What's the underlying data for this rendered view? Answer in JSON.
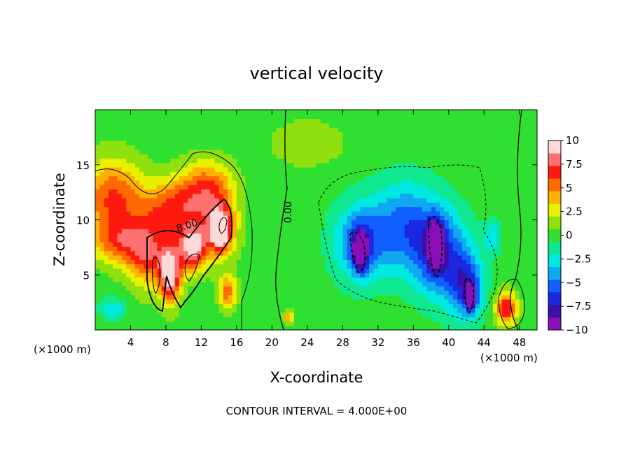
{
  "chart_data": {
    "type": "heatmap",
    "title": "vertical velocity",
    "xlabel": "X-coordinate",
    "ylabel": "Z-coordinate",
    "x_unit_left": "(×1000 m)",
    "x_unit_right": "(×1000 m)",
    "xlim": [
      0,
      50
    ],
    "ylim": [
      0,
      20
    ],
    "x_ticks": [
      4,
      8,
      12,
      16,
      20,
      24,
      28,
      32,
      36,
      40,
      44,
      48
    ],
    "y_ticks": [
      5,
      10,
      15
    ],
    "footer": "CONTOUR INTERVAL = 4.000E+00",
    "contour_labels": [
      {
        "text": "8.00",
        "x": 10.5,
        "y": 9.2,
        "angle": -18
      },
      {
        "text": "0.00",
        "x": 22.2,
        "y": 10.7,
        "angle": -90
      }
    ],
    "colorbar": {
      "min": -10,
      "max": 10,
      "ticks": [
        "10",
        "7.5",
        "5",
        "2.5",
        "0",
        "−2.5",
        "−5",
        "−7.5",
        "−10"
      ],
      "colors": [
        "#8a0fb8",
        "#3a0fa8",
        "#1a28e0",
        "#1060ff",
        "#10a8f0",
        "#00e8e0",
        "#10e890",
        "#30e030",
        "#90e010",
        "#e8f000",
        "#ffb000",
        "#ff6a00",
        "#ff1a10",
        "#ff7070",
        "#ffd8d8"
      ]
    },
    "features": [
      {
        "x": 2.0,
        "y": 12.0,
        "value": 6.2,
        "sx": 3.5,
        "sy": 3.5
      },
      {
        "x": 2.5,
        "y": 8.0,
        "value": 4.5,
        "sx": 3.0,
        "sy": 2.0
      },
      {
        "x": 6.0,
        "y": 7.0,
        "value": 6.5,
        "sx": 2.5,
        "sy": 3.0
      },
      {
        "x": 9.0,
        "y": 11.0,
        "value": 6.0,
        "sx": 3.5,
        "sy": 2.5
      },
      {
        "x": 12.5,
        "y": 13.0,
        "value": 5.0,
        "sx": 3.0,
        "sy": 2.5
      },
      {
        "x": 14.0,
        "y": 9.5,
        "value": 6.0,
        "sx": 2.0,
        "sy": 3.0
      },
      {
        "x": 8.5,
        "y": 5.0,
        "value": 9.5,
        "sx": 1.2,
        "sy": 2.5
      },
      {
        "x": 11.0,
        "y": 7.5,
        "value": 9.5,
        "sx": 1.6,
        "sy": 2.0
      },
      {
        "x": 14.2,
        "y": 9.0,
        "value": 9.0,
        "sx": 1.0,
        "sy": 1.5
      },
      {
        "x": 15.0,
        "y": 3.5,
        "value": 5.5,
        "sx": 1.0,
        "sy": 1.5
      },
      {
        "x": 46.5,
        "y": 2.0,
        "value": 7.5,
        "sx": 1.2,
        "sy": 1.5
      },
      {
        "x": 21.8,
        "y": 1.2,
        "value": 4.0,
        "sx": 0.6,
        "sy": 0.6
      },
      {
        "x": 30.0,
        "y": 8.0,
        "value": -5.5,
        "sx": 3.0,
        "sy": 3.5
      },
      {
        "x": 35.0,
        "y": 9.5,
        "value": -5.0,
        "sx": 3.5,
        "sy": 4.0
      },
      {
        "x": 39.0,
        "y": 7.0,
        "value": -6.5,
        "sx": 3.0,
        "sy": 4.0
      },
      {
        "x": 42.0,
        "y": 4.0,
        "value": -6.0,
        "sx": 2.0,
        "sy": 3.0
      },
      {
        "x": 30.0,
        "y": 7.2,
        "value": -9.0,
        "sx": 0.8,
        "sy": 1.8
      },
      {
        "x": 38.5,
        "y": 7.8,
        "value": -9.0,
        "sx": 0.8,
        "sy": 2.0
      },
      {
        "x": 42.5,
        "y": 3.0,
        "value": -8.0,
        "sx": 0.6,
        "sy": 1.2
      },
      {
        "x": 2.0,
        "y": 2.0,
        "value": -3.0,
        "sx": 1.5,
        "sy": 1.0
      },
      {
        "x": 45.0,
        "y": 8.5,
        "value": -3.0,
        "sx": 1.0,
        "sy": 1.5
      },
      {
        "x": 24.0,
        "y": 17.0,
        "value": 2.0,
        "sx": 4.0,
        "sy": 2.0
      }
    ]
  }
}
